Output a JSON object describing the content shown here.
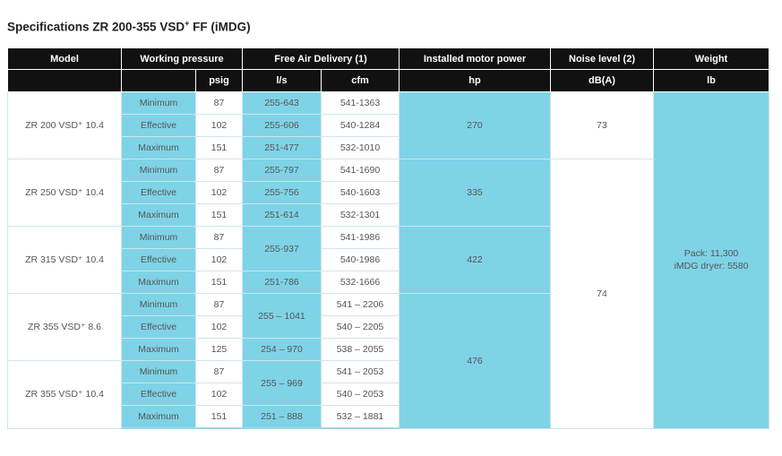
{
  "title": {
    "main": "Specifications ZR 200-355 VSD",
    "sup": "+",
    "tail": " FF (iMDG)"
  },
  "headers": {
    "model": "Model",
    "working_pressure": "Working pressure",
    "free_air_delivery": "Free Air Delivery (1)",
    "motor_power": "Installed motor power",
    "noise": "Noise level (2)",
    "weight": "Weight"
  },
  "units": {
    "psig": "psig",
    "ls": "l/s",
    "cfm": "cfm",
    "hp": "hp",
    "dba": "dB(A)",
    "lb": "lb"
  },
  "models": [
    {
      "name": "ZR 200 VSD⁺ 10.4",
      "power": "270",
      "rows": [
        {
          "level": "Minimum",
          "psig": "87",
          "ls": "255-643",
          "cfm": "541-1363"
        },
        {
          "level": "Effective",
          "psig": "102",
          "ls": "255-606",
          "cfm": "540-1284"
        },
        {
          "level": "Maximum",
          "psig": "151",
          "ls": "251-477",
          "cfm": "532-1010"
        }
      ]
    },
    {
      "name": "ZR 250 VSD⁺ 10.4",
      "power": "335",
      "rows": [
        {
          "level": "Minimum",
          "psig": "87",
          "ls": "255-797",
          "cfm": "541-1690"
        },
        {
          "level": "Effective",
          "psig": "102",
          "ls": "255-756",
          "cfm": "540-1603"
        },
        {
          "level": "Maximum",
          "psig": "151",
          "ls": "251-614",
          "cfm": "532-1301"
        }
      ]
    },
    {
      "name": "ZR 315 VSD⁺ 10.4",
      "power": "422",
      "ls_merged": "255-937",
      "rows": [
        {
          "level": "Minimum",
          "psig": "87",
          "cfm": "541-1986"
        },
        {
          "level": "Effective",
          "psig": "102",
          "cfm": "540-1986"
        },
        {
          "level": "Maximum",
          "psig": "151",
          "ls": "251-786",
          "cfm": "532-1666"
        }
      ]
    },
    {
      "name": "ZR 355 VSD⁺ 8.6",
      "ls_merged": "255 – 1041",
      "rows": [
        {
          "level": "Minimum",
          "psig": "87",
          "cfm": "541 – 2206"
        },
        {
          "level": "Effective",
          "psig": "102",
          "cfm": "540 – 2205"
        },
        {
          "level": "Maximum",
          "psig": "125",
          "ls": "254 – 970",
          "cfm": "538 – 2055"
        }
      ]
    },
    {
      "name": "ZR 355 VSD⁺ 10.4",
      "ls_merged": "255 – 969",
      "rows": [
        {
          "level": "Minimum",
          "psig": "87",
          "cfm": "541 – 2053"
        },
        {
          "level": "Effective",
          "psig": "102",
          "cfm": "540 – 2053"
        },
        {
          "level": "Maximum",
          "psig": "151",
          "ls": "251 – 888",
          "cfm": "532 – 1881"
        }
      ]
    }
  ],
  "power_355": "476",
  "noise": {
    "first": "73",
    "rest": "74"
  },
  "weight": {
    "line1": "Pack: 11,300",
    "line2": "iMDG dryer: 5580"
  },
  "colors": {
    "header_bg": "#111111",
    "accent": "#7fd3e6",
    "border": "#cfe5ee"
  }
}
